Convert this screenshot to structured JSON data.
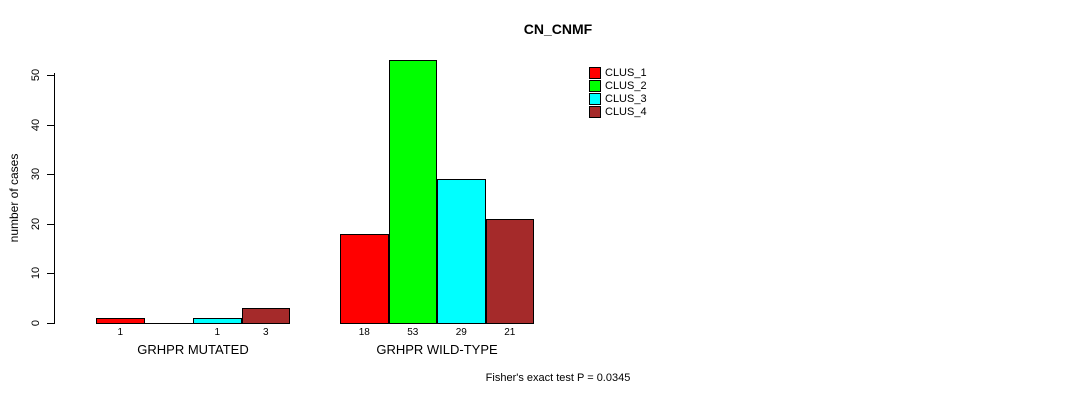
{
  "chart_data": {
    "type": "bar",
    "title": "CN_CNMF",
    "xlabel": "",
    "ylabel": "number of cases",
    "ylim": [
      0,
      50
    ],
    "yticks": [
      0,
      10,
      20,
      30,
      40,
      50
    ],
    "grid": false,
    "categories": [
      "GRHPR MUTATED",
      "GRHPR WILD-TYPE"
    ],
    "series": [
      {
        "name": "CLUS_1",
        "color": "#FF0000",
        "values": [
          1,
          18
        ]
      },
      {
        "name": "CLUS_2",
        "color": "#00FF00",
        "values": [
          0,
          53
        ]
      },
      {
        "name": "CLUS_3",
        "color": "#00FFFF",
        "values": [
          1,
          29
        ]
      },
      {
        "name": "CLUS_4",
        "color": "#A52A2A",
        "values": [
          3,
          21
        ]
      }
    ],
    "bar_value_labels_shown": true,
    "legend_position": "top-right",
    "annotation": "Fisher's exact test P = 0.0345"
  }
}
